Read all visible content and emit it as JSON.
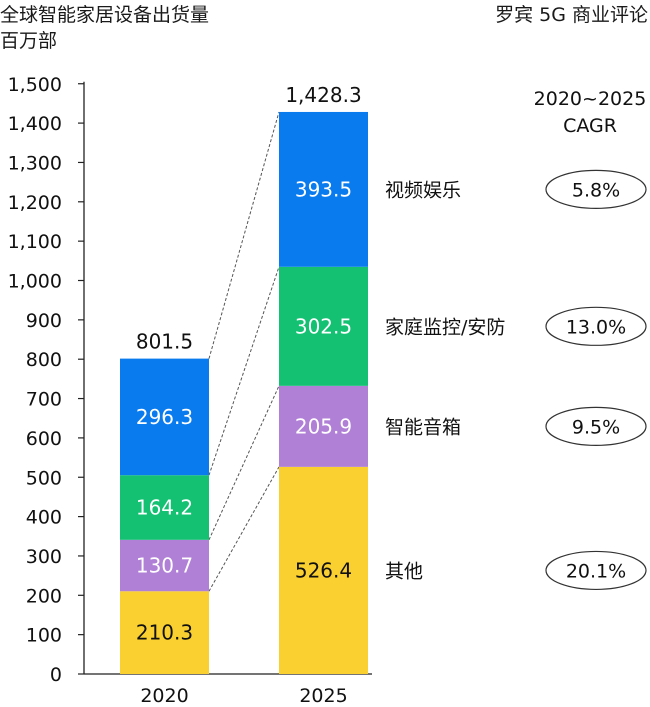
{
  "chart_data": {
    "type": "bar",
    "stacked": true,
    "title": "全球智能家居设备出货量",
    "unit": "百万部",
    "source": "罗宾 5G 商业评论",
    "categories": [
      "2020",
      "2025"
    ],
    "ylim": [
      0,
      1500
    ],
    "yticks": [
      0,
      100,
      200,
      300,
      400,
      500,
      600,
      700,
      800,
      900,
      1000,
      1100,
      1200,
      1300,
      1400,
      1500
    ],
    "ytick_labels": [
      "0",
      "100",
      "200",
      "300",
      "400",
      "500",
      "600",
      "700",
      "800",
      "900",
      "1,000",
      "1,100",
      "1,200",
      "1,300",
      "1,400",
      "1,500"
    ],
    "totals": [
      801.5,
      1428.3
    ],
    "total_labels": [
      "801.5",
      "1,428.3"
    ],
    "series": [
      {
        "name": "其他",
        "color": "#F9D030",
        "label_color": "#111111",
        "values": [
          210.3,
          526.4
        ],
        "labels": [
          "210.3",
          "526.4"
        ],
        "cagr": "20.1%"
      },
      {
        "name": "智能音箱",
        "color": "#B07FD6",
        "label_color": "#ffffff",
        "values": [
          130.7,
          205.9
        ],
        "labels": [
          "130.7",
          "205.9"
        ],
        "cagr": "9.5%"
      },
      {
        "name": "家庭监控/安防",
        "color": "#14C172",
        "label_color": "#ffffff",
        "values": [
          164.2,
          302.5
        ],
        "labels": [
          "164.2",
          "302.5"
        ],
        "cagr": "13.0%"
      },
      {
        "name": "视频娱乐",
        "color": "#0A7BEF",
        "label_color": "#ffffff",
        "values": [
          296.3,
          393.5
        ],
        "labels": [
          "296.3",
          "393.5"
        ],
        "cagr": "5.8%"
      }
    ],
    "cagr_header": [
      "2020~2025",
      "CAGR"
    ],
    "grid": false,
    "connector_lines": "dashed"
  }
}
